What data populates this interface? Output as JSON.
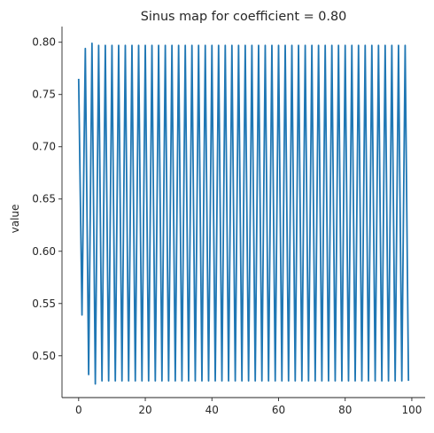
{
  "chart_data": {
    "type": "line",
    "title": "Sinus map for coefficient = 0.80",
    "xlabel": "",
    "ylabel": "value",
    "xlim": [
      -5,
      104
    ],
    "ylim": [
      0.46,
      0.815
    ],
    "x_ticks": [
      0,
      20,
      40,
      60,
      80,
      100
    ],
    "y_ticks": [
      0.5,
      0.55,
      0.6,
      0.65,
      0.7,
      0.75,
      0.8
    ],
    "x_tick_labels": [
      "0",
      "20",
      "40",
      "60",
      "80",
      "100"
    ],
    "y_tick_labels": [
      "0.50",
      "0.55",
      "0.60",
      "0.65",
      "0.70",
      "0.75",
      "0.80"
    ],
    "grid": false,
    "series": [
      {
        "color": "#1f77b4",
        "x": [
          0,
          1,
          2,
          3,
          4,
          5,
          6,
          7,
          8,
          9,
          10,
          11,
          12,
          13,
          14,
          15,
          16,
          17,
          18,
          19,
          20,
          21,
          22,
          23,
          24,
          25,
          26,
          27,
          28,
          29,
          30,
          31,
          32,
          33,
          34,
          35,
          36,
          37,
          38,
          39,
          40,
          41,
          42,
          43,
          44,
          45,
          46,
          47,
          48,
          49,
          50,
          51,
          52,
          53,
          54,
          55,
          56,
          57,
          58,
          59,
          60,
          61,
          62,
          63,
          64,
          65,
          66,
          67,
          68,
          69,
          70,
          71,
          72,
          73,
          74,
          75,
          76,
          77,
          78,
          79,
          80,
          81,
          82,
          83,
          84,
          85,
          86,
          87,
          88,
          89,
          90,
          91,
          92,
          93,
          94,
          95,
          96,
          97,
          98,
          99
        ],
        "values": [
          0.765,
          0.539,
          0.794,
          0.482,
          0.799,
          0.473,
          0.797,
          0.476,
          0.797,
          0.476,
          0.797,
          0.476,
          0.797,
          0.476,
          0.797,
          0.476,
          0.797,
          0.476,
          0.797,
          0.476,
          0.797,
          0.476,
          0.797,
          0.476,
          0.797,
          0.476,
          0.797,
          0.476,
          0.797,
          0.476,
          0.797,
          0.476,
          0.797,
          0.476,
          0.797,
          0.476,
          0.797,
          0.476,
          0.797,
          0.476,
          0.797,
          0.476,
          0.797,
          0.476,
          0.797,
          0.476,
          0.797,
          0.476,
          0.797,
          0.476,
          0.797,
          0.476,
          0.797,
          0.476,
          0.797,
          0.476,
          0.797,
          0.476,
          0.797,
          0.476,
          0.797,
          0.476,
          0.797,
          0.476,
          0.797,
          0.476,
          0.797,
          0.476,
          0.797,
          0.476,
          0.797,
          0.476,
          0.797,
          0.476,
          0.797,
          0.476,
          0.797,
          0.476,
          0.797,
          0.476,
          0.797,
          0.476,
          0.797,
          0.476,
          0.797,
          0.476,
          0.797,
          0.476,
          0.797,
          0.476,
          0.797,
          0.476,
          0.797,
          0.476,
          0.797,
          0.476,
          0.797,
          0.476,
          0.797,
          0.476
        ]
      }
    ]
  }
}
